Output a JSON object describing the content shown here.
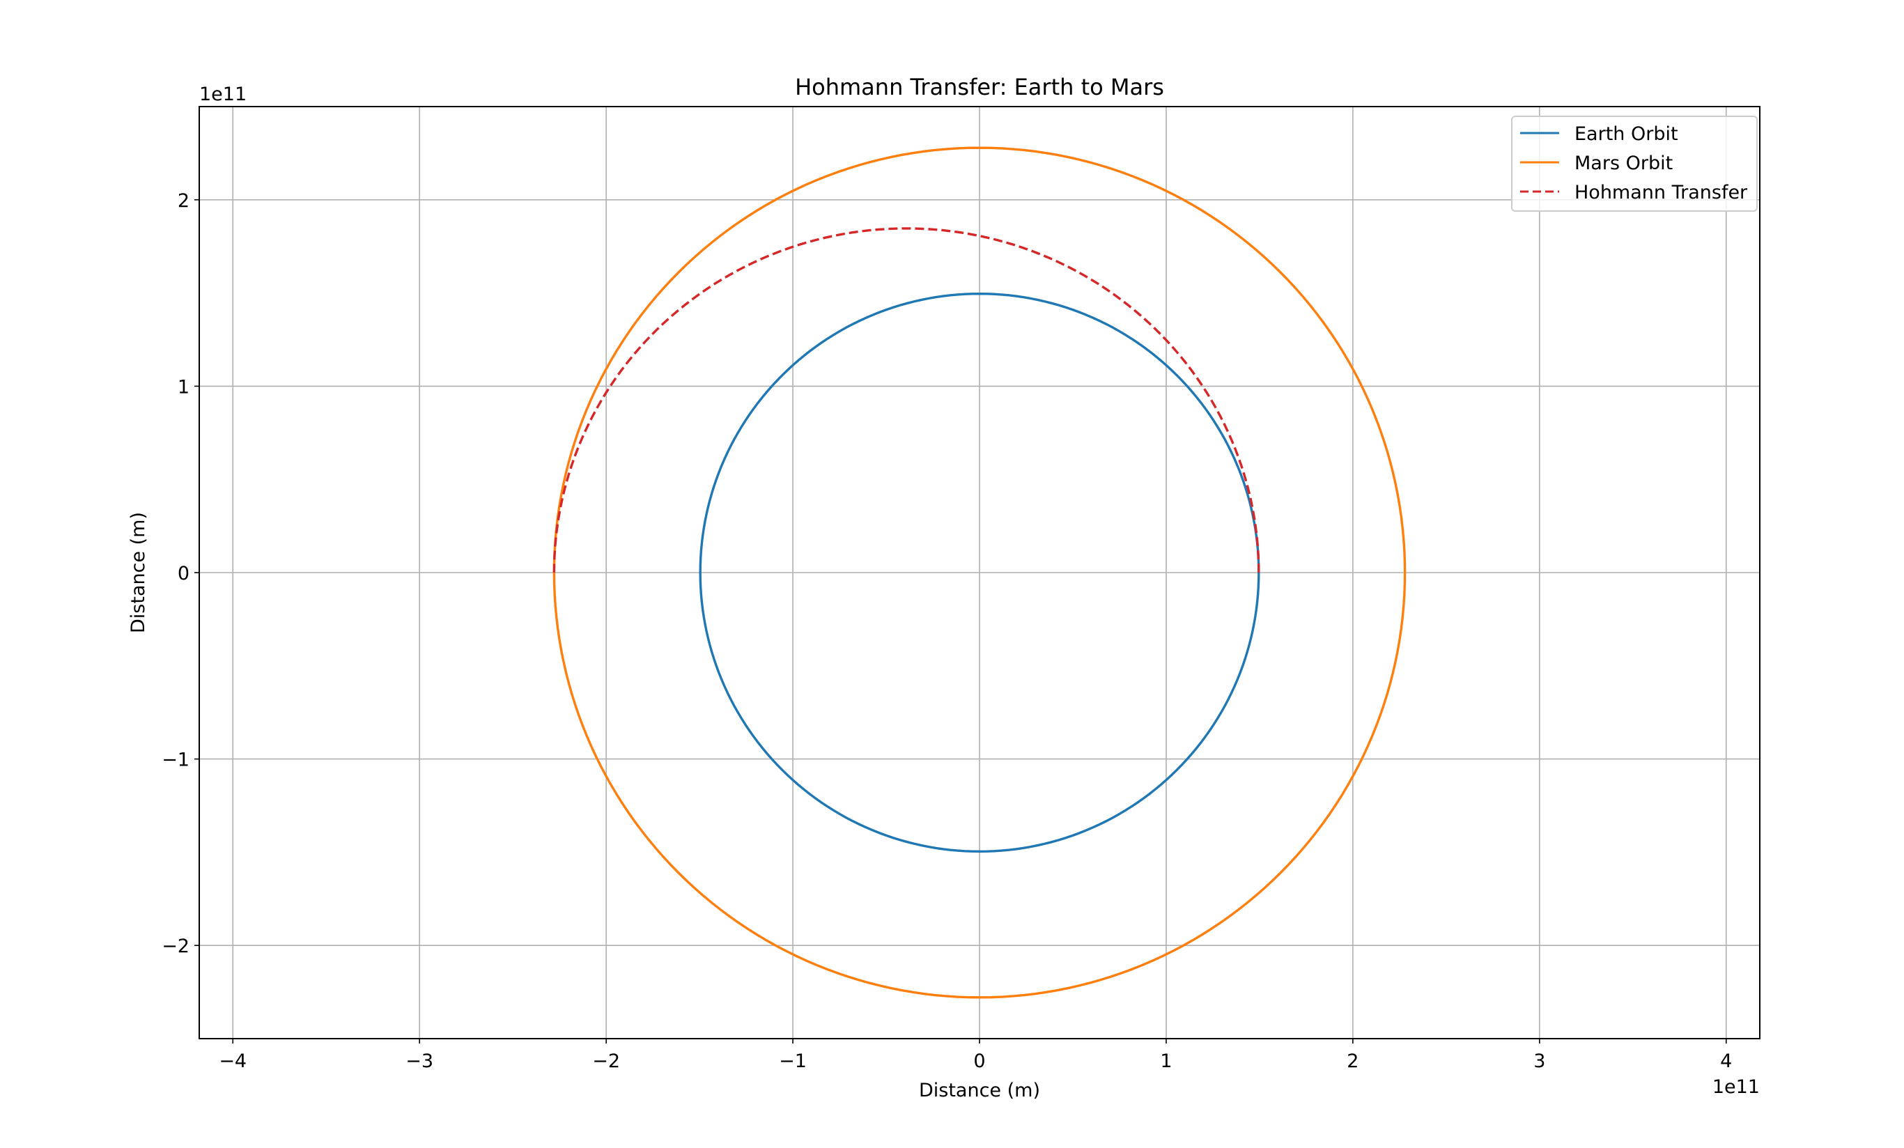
{
  "chart_data": {
    "type": "line",
    "title": "Hohmann Transfer: Earth to Mars",
    "xlabel": "Distance (m)",
    "ylabel": "Distance (m)",
    "x_offset_label": "1e11",
    "y_offset_label": "1e11",
    "units_scale": 100000000000.0,
    "xlim": [
      -4.18,
      4.18
    ],
    "ylim": [
      -2.5,
      2.5
    ],
    "xticks": [
      -4,
      -3,
      -2,
      -1,
      0,
      1,
      2,
      3,
      4
    ],
    "yticks": [
      -2,
      -1,
      0,
      1,
      2
    ],
    "xtick_labels": [
      "−4",
      "−3",
      "−2",
      "−1",
      "0",
      "1",
      "2",
      "3",
      "4"
    ],
    "ytick_labels": [
      "−2",
      "−1",
      "0",
      "1",
      "2"
    ],
    "grid": true,
    "legend_position": "top-right",
    "series": [
      {
        "name": "Earth Orbit",
        "color": "#1f77b4",
        "style": "solid",
        "shape": "circle",
        "center": [
          0,
          0
        ],
        "radius": 1.496
      },
      {
        "name": "Mars Orbit",
        "color": "#ff7f0e",
        "style": "solid",
        "shape": "circle",
        "center": [
          0,
          0
        ],
        "radius": 2.279
      },
      {
        "name": "Hohmann Transfer",
        "color": "#d62728",
        "style": "dashed",
        "shape": "half-ellipse",
        "perihelion": 1.496,
        "aphelion": 2.279
      }
    ]
  }
}
